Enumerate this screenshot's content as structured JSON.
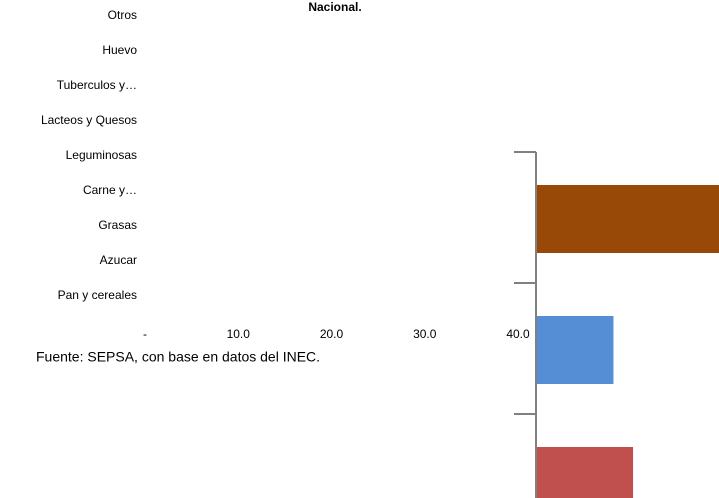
{
  "chart_data": [
    {
      "type": "bar",
      "orientation": "horizontal",
      "title": "Nacional.",
      "source": "Fuente: SEPSA, con base en datos del INEC.",
      "categories": [
        "Otros",
        "Huevo",
        "Tuberculos y…",
        "Lacteos y Quesos",
        "Leguminosas",
        "Carne y…",
        "Grasas",
        "Azucar",
        "Pan y cereales"
      ],
      "xlim": [
        0,
        40
      ],
      "xticks": [
        {
          "value": 0,
          "label": "-"
        },
        {
          "value": 10,
          "label": "10.0"
        },
        {
          "value": 20,
          "label": "20.0"
        },
        {
          "value": 30,
          "label": "30.0"
        },
        {
          "value": 40,
          "label": "40.0"
        }
      ]
    },
    {
      "type": "bar",
      "orientation": "horizontal",
      "xlim": [
        0,
        20
      ],
      "values": [
        20,
        8.3,
        10.4
      ],
      "colors": [
        "#984807",
        "#558ed5",
        "#c0504d"
      ],
      "axis_color": "#808080"
    }
  ]
}
